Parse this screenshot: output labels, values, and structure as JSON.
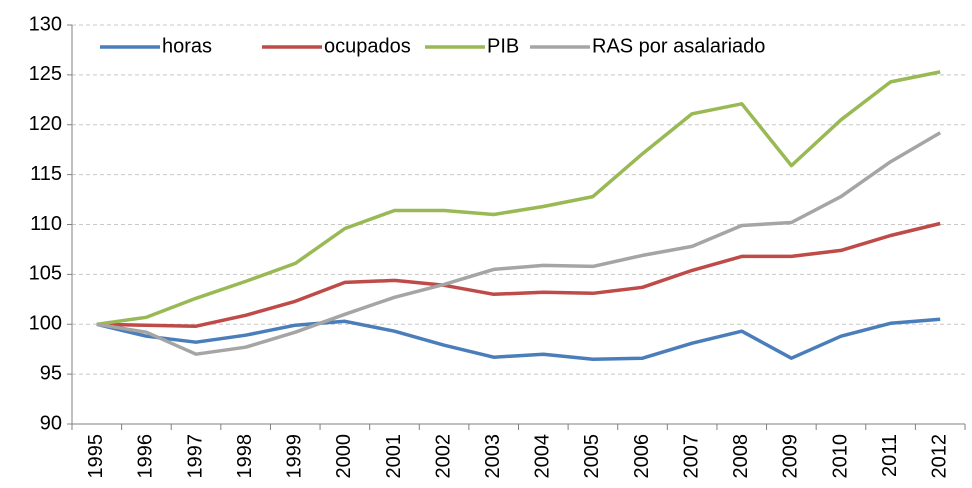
{
  "chart_data": {
    "type": "line",
    "categories": [
      "1995",
      "1996",
      "1997",
      "1998",
      "1999",
      "2000",
      "2001",
      "2002",
      "2003",
      "2004",
      "2005",
      "2006",
      "2007",
      "2008",
      "2009",
      "2010",
      "2011",
      "2012"
    ],
    "series": [
      {
        "name": "horas",
        "color": "#4a7ebb",
        "values": [
          100,
          98.8,
          98.2,
          98.9,
          99.9,
          100.3,
          99.3,
          97.9,
          96.7,
          97.0,
          96.5,
          96.6,
          98.1,
          99.3,
          96.6,
          98.8,
          100.1,
          100.5
        ]
      },
      {
        "name": "ocupados",
        "color": "#be4b48",
        "values": [
          100,
          99.9,
          99.8,
          100.9,
          102.3,
          104.2,
          104.4,
          103.9,
          103.0,
          103.2,
          103.1,
          103.7,
          105.4,
          106.8,
          106.8,
          107.4,
          108.9,
          110.1
        ]
      },
      {
        "name": "PIB",
        "color": "#98b954",
        "values": [
          100,
          100.7,
          102.6,
          104.3,
          106.1,
          109.6,
          111.4,
          111.4,
          111.0,
          111.8,
          112.8,
          117.1,
          121.1,
          122.1,
          115.9,
          120.5,
          124.3,
          125.3
        ]
      },
      {
        "name": "RAS por asalariado",
        "color": "#a5a5a5",
        "values": [
          100,
          99.2,
          97.0,
          97.7,
          99.2,
          101.0,
          102.7,
          104.0,
          105.5,
          105.9,
          105.8,
          106.9,
          107.8,
          109.9,
          110.2,
          112.8,
          116.3,
          119.2
        ]
      }
    ],
    "ylim": [
      90,
      130
    ],
    "yticks": [
      90,
      95,
      100,
      105,
      110,
      115,
      120,
      125,
      130
    ],
    "grid": true,
    "legend": "top"
  }
}
